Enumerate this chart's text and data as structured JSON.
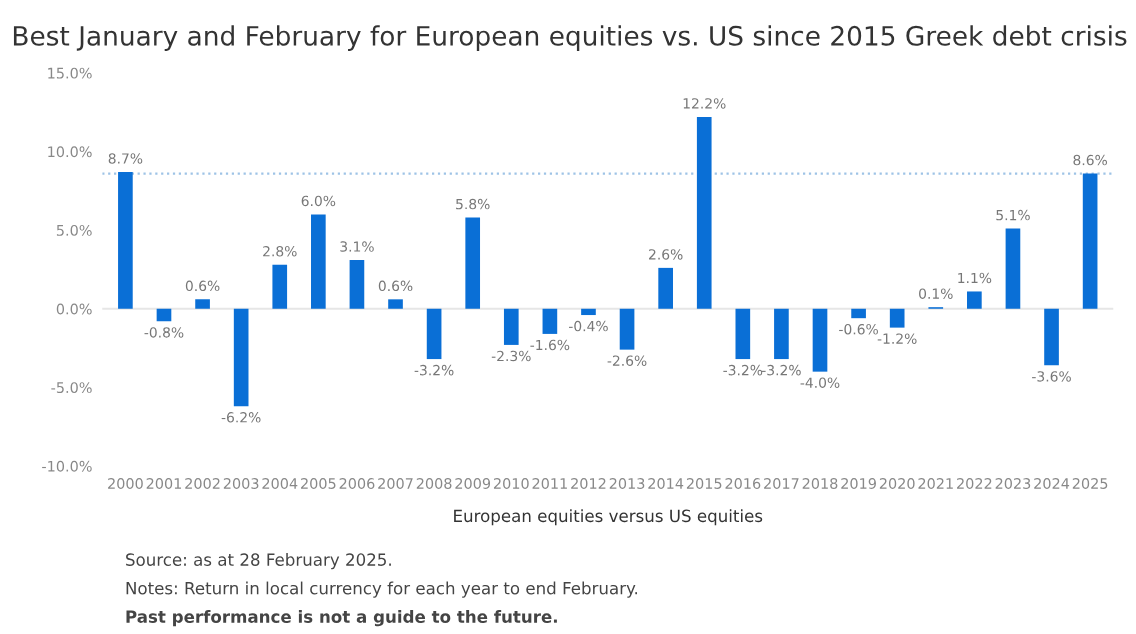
{
  "chart_data": {
    "type": "bar",
    "title": "Best January and February for European equities vs. US since 2015 Greek debt crisis",
    "xlabel": "European equities versus US equities",
    "categories": [
      "2000",
      "2001",
      "2002",
      "2003",
      "2004",
      "2005",
      "2006",
      "2007",
      "2008",
      "2009",
      "2010",
      "2011",
      "2012",
      "2013",
      "2014",
      "2015",
      "2016",
      "2017",
      "2018",
      "2019",
      "2020",
      "2021",
      "2022",
      "2023",
      "2024",
      "2025"
    ],
    "values": [
      8.7,
      -0.8,
      0.6,
      -6.2,
      2.8,
      6.0,
      3.1,
      0.6,
      -3.2,
      5.8,
      -2.3,
      -1.6,
      -0.4,
      -2.6,
      2.6,
      12.2,
      -3.2,
      -3.2,
      -4.0,
      -0.6,
      -1.2,
      0.1,
      1.1,
      5.1,
      -3.6,
      8.6
    ],
    "value_labels": [
      "8.7%",
      "-0.8%",
      "0.6%",
      "-6.2%",
      "2.8%",
      "6.0%",
      "3.1%",
      "0.6%",
      "-3.2%",
      "5.8%",
      "-2.3%",
      "-1.6%",
      "-0.4%",
      "-2.6%",
      "2.6%",
      "12.2%",
      "-3.2%",
      "-3.2%",
      "-4.0%",
      "-0.6%",
      "-1.2%",
      "0.1%",
      "1.1%",
      "5.1%",
      "-3.6%",
      "8.6%"
    ],
    "color": "#0a6fd6",
    "ylim": [
      -10,
      15
    ],
    "yticks": [
      {
        "value": -10,
        "label": "-10.0%"
      },
      {
        "value": -5,
        "label": "-5.0%"
      },
      {
        "value": 0,
        "label": "0.0%"
      },
      {
        "value": 5,
        "label": "5.0%"
      },
      {
        "value": 10,
        "label": "10.0%"
      },
      {
        "value": 15,
        "label": "15.0%"
      }
    ],
    "ref_lines": [
      {
        "axis": "y",
        "value": 0,
        "color": "#e6e6e6",
        "line_style": "solid"
      },
      {
        "axis": "y",
        "value": 8.6,
        "color": "#9ec3e6",
        "line_style": "dotted"
      }
    ],
    "grid": false,
    "legend": false,
    "annotations": [
      "Source: as at 28 February 2025.",
      "Notes: Return in local currency for each year to end February.",
      "Past performance is not a guide to the future."
    ]
  }
}
